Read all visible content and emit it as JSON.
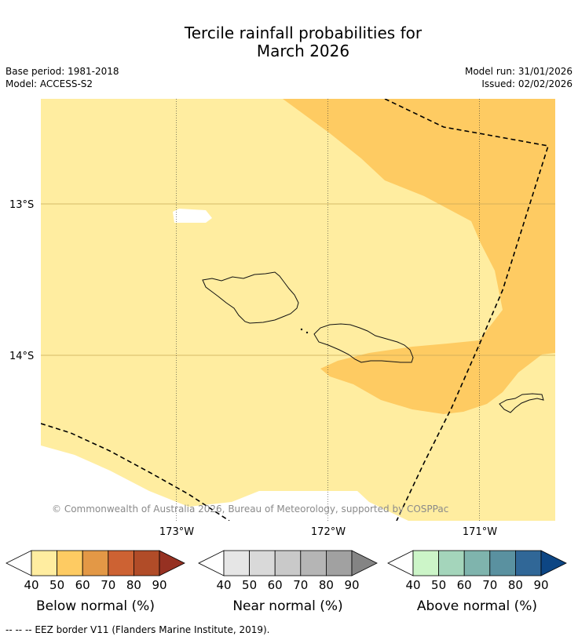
{
  "title_line1": "Tercile rainfall probabilities for",
  "title_line2": "March 2026",
  "meta": {
    "base_period": "Base period: 1981-2018",
    "model": "Model: ACCESS-S2",
    "model_run": "Model run: 31/01/2026",
    "issued": "Issued: 02/02/2026"
  },
  "axes": {
    "lat_labels": [
      "13°S",
      "14°S"
    ],
    "lon_labels": [
      "173°W",
      "172°W",
      "171°W"
    ]
  },
  "copyright": "© Commonwealth of Australia 2026, Bureau of Meteorology, supported by COSPPac",
  "colorbars": [
    {
      "label": "Below normal (%)",
      "ticks": [
        "40",
        "50",
        "60",
        "70",
        "80",
        "90"
      ],
      "colors": [
        "#fff",
        "#ffeda0",
        "#fecb62",
        "#e39846",
        "#cd6233",
        "#b14c28",
        "#963122"
      ]
    },
    {
      "label": "Near normal (%)",
      "ticks": [
        "40",
        "50",
        "60",
        "70",
        "80",
        "90"
      ],
      "colors": [
        "#fff",
        "#e6e6e6",
        "#d9d9d9",
        "#c9c9c9",
        "#b5b5b5",
        "#a1a1a1",
        "#848484"
      ]
    },
    {
      "label": "Above normal (%)",
      "ticks": [
        "40",
        "50",
        "60",
        "70",
        "80",
        "90"
      ],
      "colors": [
        "#fff",
        "#ccf5c8",
        "#a4d5bb",
        "#7fb4ad",
        "#5a91a0",
        "#306797",
        "#0d4684"
      ]
    }
  ],
  "footnote": "--  --  -- EEZ border V11 (Flanders Marine Institute, 2019)."
}
